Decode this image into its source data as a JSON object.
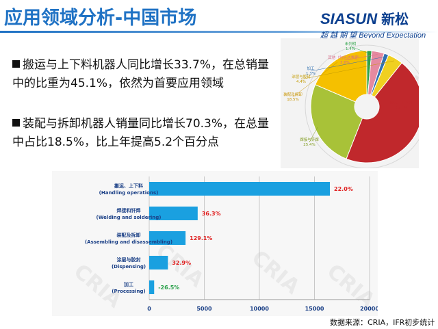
{
  "slide": {
    "title": "应用领域分析-中国市场",
    "source": "数据来源：CRIA，IFR初步统计"
  },
  "logo": {
    "brand": "SIASUN",
    "brand_cn": "新松",
    "tagline": "超 越 期 望  Beyond Expectation"
  },
  "bullets": [
    "搬运与上下料机器人同比增长33.7%，在总销量中的比重为45.1%，依然为首要应用领域",
    "装配与拆卸机器人销量同比增长70.3%，在总量中占比18.5%，比上年提高5.2个百分点"
  ],
  "watermark": "CRIA",
  "colors": {
    "title": "#1f72c4",
    "bar": "#1aa0e0",
    "annotation": "#e02020",
    "annotation_neg": "#2aa04a"
  },
  "chart_data": [
    {
      "type": "pie",
      "style": "donut",
      "slices": [
        {
          "label": "未列明",
          "value_label": "1.4%",
          "value": 1.4,
          "color": "#2fa34a"
        },
        {
          "label": "其他（包括洁净室）",
          "value_label": "3.6%",
          "value": 3.6,
          "color": "#e58aa0"
        },
        {
          "label": "加工",
          "value_label": "1.3%",
          "value": 1.3,
          "color": "#2f6fb0"
        },
        {
          "label": "涂层与胶封",
          "value_label": "4.4%",
          "value": 4.4,
          "color": "#f0d020"
        },
        {
          "label": "焊接与钎焊",
          "value_label": "",
          "value": 0,
          "color": "#8a8a8a"
        },
        {
          "label": "搬运、上下料",
          "value_label": "45.1%",
          "value": 45.1,
          "color": "#c0282c"
        },
        {
          "label": "焊接与钎焊",
          "value_label": "25.4%",
          "value": 25.4,
          "color": "#a8c238"
        },
        {
          "label": "装配及拆卸",
          "value_label": "18.5%",
          "value": 18.5,
          "color": "#f5c000"
        }
      ]
    },
    {
      "type": "bar",
      "orientation": "horizontal",
      "categories": [
        {
          "cn": "搬运、上下料",
          "en": "(Handling operations)"
        },
        {
          "cn": "焊接和钎焊",
          "en": "(Welding and soldering)"
        },
        {
          "cn": "装配及拆卸",
          "en": "(Assembling and disassembling)"
        },
        {
          "cn": "涂层与胶封",
          "en": "(Dispensing)"
        },
        {
          "cn": "加工",
          "en": "(Processing)"
        }
      ],
      "values": [
        16400,
        4400,
        3300,
        1700,
        450
      ],
      "annotations": [
        "22.0%",
        "36.3%",
        "129.1%",
        "32.9%",
        "-26.5%"
      ],
      "xlim": [
        0,
        20000
      ],
      "xticks": [
        0,
        5000,
        10000,
        15000,
        20000
      ],
      "grid": true
    }
  ]
}
